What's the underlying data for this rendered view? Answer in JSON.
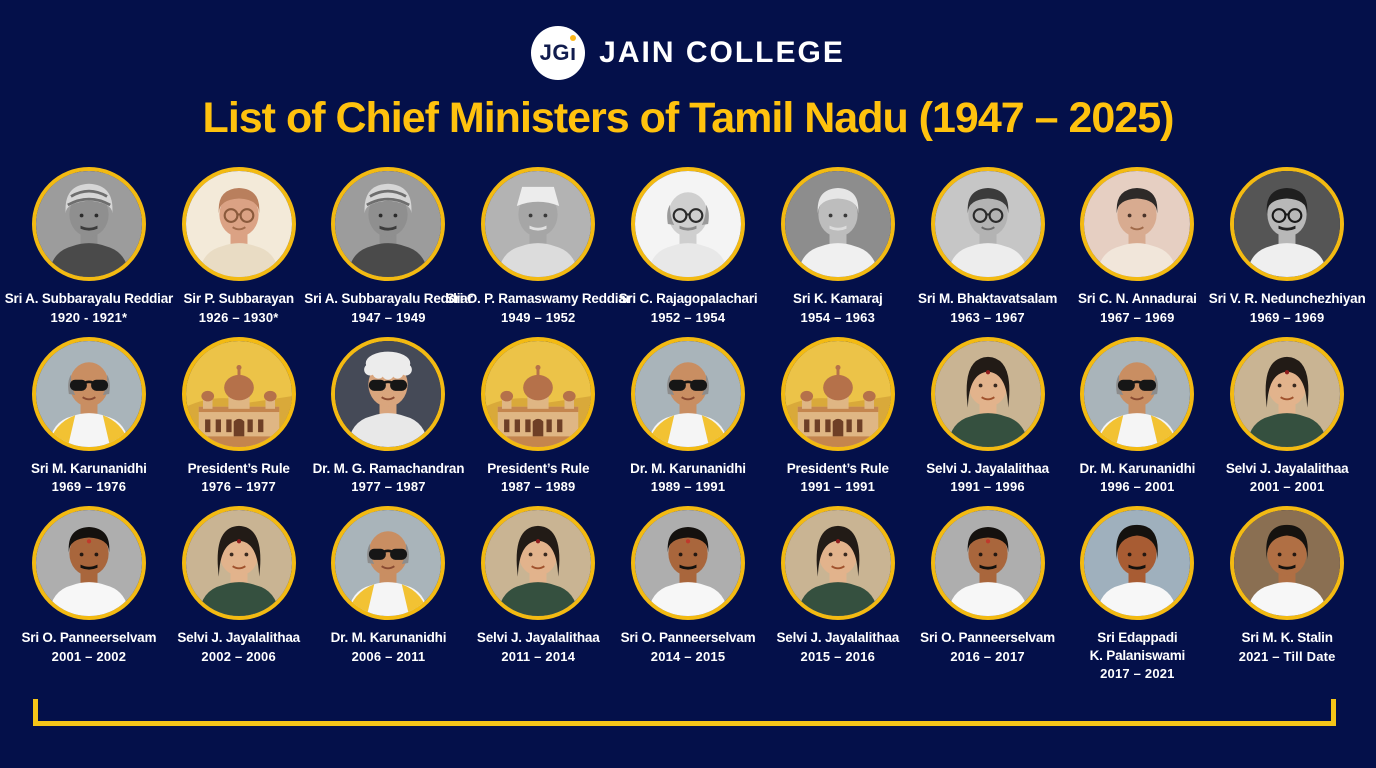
{
  "colors": {
    "page_bg": "#04104a",
    "title_gold": "#ffc20e",
    "ring_gold": "#f3ba12",
    "bracket_gold": "#f5c518",
    "text_white": "#ffffff",
    "logo_navy": "#111c4e",
    "logo_dot": "#ffb81c"
  },
  "header": {
    "logo_part1": "JG",
    "logo_part2": "ı",
    "college_name": "JAIN COLLEGE"
  },
  "title": "List of Chief Ministers of Tamil Nadu (1947 – 2025)",
  "grid": {
    "rows": [
      [
        {
          "name": "Sri A. Subbarayalu Reddiar",
          "years": "1920 - 1921*",
          "avatar": "subbarayalu"
        },
        {
          "name": "Sir P. Subbarayan",
          "years": "1926 – 1930*",
          "avatar": "subbarayan"
        },
        {
          "name": "Sri A. Subbarayalu Reddiar",
          "years": "1947 – 1949",
          "avatar": "subbarayalu"
        },
        {
          "name": "Sri O. P. Ramaswamy Reddiar",
          "years": "1949 – 1952",
          "avatar": "ramaswamy"
        },
        {
          "name": "Sri C. Rajagopalachari",
          "years": "1952 – 1954",
          "avatar": "rajaji"
        },
        {
          "name": "Sri K. Kamaraj",
          "years": "1954 – 1963",
          "avatar": "kamaraj"
        },
        {
          "name": "Sri M. Bhaktavatsalam",
          "years": "1963 – 1967",
          "avatar": "bhaktavatsalam"
        },
        {
          "name": "Sri C. N. Annadurai",
          "years": "1967 – 1969",
          "avatar": "annadurai"
        },
        {
          "name": "Sri V. R. Nedunchezhiyan",
          "years": "1969 – 1969",
          "avatar": "nedunchezhiyan"
        }
      ],
      [
        {
          "name": "Sri M. Karunanidhi",
          "years": "1969 – 1976",
          "avatar": "karunanidhi"
        },
        {
          "name": "President’s Rule",
          "years": "1976 – 1977",
          "avatar": "presidents_rule"
        },
        {
          "name": "Dr. M. G. Ramachandran",
          "years": "1977 – 1987",
          "avatar": "mgr"
        },
        {
          "name": "President’s Rule",
          "years": "1987 – 1989",
          "avatar": "presidents_rule"
        },
        {
          "name": "Dr. M. Karunanidhi",
          "years": "1989 – 1991",
          "avatar": "karunanidhi"
        },
        {
          "name": "President’s Rule",
          "years": "1991 – 1991",
          "avatar": "presidents_rule"
        },
        {
          "name": "Selvi J. Jayalalithaa",
          "years": "1991 – 1996",
          "avatar": "jayalalithaa"
        },
        {
          "name": "Dr. M. Karunanidhi",
          "years": "1996 – 2001",
          "avatar": "karunanidhi"
        },
        {
          "name": "Selvi J. Jayalalithaa",
          "years": "2001 – 2001",
          "avatar": "jayalalithaa"
        }
      ],
      [
        {
          "name": "Sri O. Panneerselvam",
          "years": "2001 – 2002",
          "avatar": "panneerselvam"
        },
        {
          "name": "Selvi J. Jayalalithaa",
          "years": "2002 – 2006",
          "avatar": "jayalalithaa"
        },
        {
          "name": "Dr. M. Karunanidhi",
          "years": "2006 – 2011",
          "avatar": "karunanidhi"
        },
        {
          "name": "Selvi J. Jayalalithaa",
          "years": "2011 – 2014",
          "avatar": "jayalalithaa"
        },
        {
          "name": "Sri O. Panneerselvam",
          "years": "2014 – 2015",
          "avatar": "panneerselvam"
        },
        {
          "name": "Selvi J. Jayalalithaa",
          "years": "2015 – 2016",
          "avatar": "jayalalithaa"
        },
        {
          "name": "Sri O. Panneerselvam",
          "years": "2016 – 2017",
          "avatar": "panneerselvam"
        },
        {
          "name": "Sri Edappadi\nK. Palaniswami",
          "years": "2017 – 2021",
          "avatar": "palaniswami"
        },
        {
          "name": "Sri M. K. Stalin",
          "years": "2021 – Till Date",
          "avatar": "stalin"
        }
      ]
    ]
  },
  "avatars": {
    "subbarayalu": {
      "kind": "person",
      "bg": "#9c9c9c",
      "skin": "#8f8f8f",
      "shirt": "#4a4a4a",
      "hair": "turban",
      "hair_color": "#d6d6d6",
      "stripe": "#6e6e6e",
      "glasses": "none",
      "mustache": "#3c3c3c",
      "eye": "#2b2b2b"
    },
    "subbarayan": {
      "kind": "person",
      "bg": "#f3ead9",
      "skin": "#dba284",
      "shirt": "#e9dcc4",
      "hair": "side",
      "hair_color": "#b97f5d",
      "glasses": "round",
      "frame": "#8a5a3c",
      "eye": "#6b4632",
      "mouth": "#a06a4a"
    },
    "ramaswamy": {
      "kind": "person",
      "bg": "#b3b3b3",
      "skin": "#a6a6a6",
      "shirt": "#dcdcdc",
      "hair": "cap",
      "hair_color": "#ececec",
      "glasses": "none",
      "mustache": "#e0e0e0",
      "eye": "#3a3a3a"
    },
    "rajaji": {
      "kind": "person",
      "bg": "#f4f4f4",
      "skin": "#cfcfcf",
      "shirt": "#e8e8e8",
      "hair": "bald",
      "hair_color": "#9a9a9a",
      "glasses": "round",
      "frame": "#2b2b2b",
      "mustache": "#8a8a8a",
      "eye": "#3a3a3a"
    },
    "kamaraj": {
      "kind": "person",
      "bg": "#8d8d8d",
      "skin": "#bdbdbd",
      "shirt": "#f0f0f0",
      "hair": "side",
      "hair_color": "#e6e6e6",
      "glasses": "none",
      "mustache": "#dcdcdc",
      "eye": "#3a3a3a"
    },
    "bhaktavatsalam": {
      "kind": "person",
      "bg": "#c6c6c6",
      "skin": "#b3b3b3",
      "shirt": "#ededed",
      "hair": "side",
      "hair_color": "#3b3b3b",
      "glasses": "round",
      "frame": "#2b2b2b",
      "eye": "#3a3a3a",
      "mouth": "#6a6a6a"
    },
    "annadurai": {
      "kind": "person",
      "bg": "#e6cfc2",
      "skin": "#d8ab90",
      "shirt": "#f1e6da",
      "hair": "side",
      "hair_color": "#2e2a28",
      "glasses": "none",
      "eye": "#4a342a",
      "mouth": "#a06a4a"
    },
    "nedunchezhiyan": {
      "kind": "person",
      "bg": "#555555",
      "skin": "#b8b8b8",
      "shirt": "#efefef",
      "hair": "side",
      "hair_color": "#1f1f1f",
      "glasses": "round",
      "frame": "#1a1a1a",
      "mustache": "#222222",
      "eye": "#2b2b2b"
    },
    "karunanidhi": {
      "kind": "person",
      "bg": "#a9b4ba",
      "skin": "#c98e62",
      "shirt": "#f5f5f5",
      "hair": "bald",
      "hair_color": "#8c8c8c",
      "glasses": "sun",
      "shawl": "#f2c233",
      "mouth": "#8a4b32"
    },
    "presidents_rule": {
      "kind": "building",
      "sky": "#ecc348",
      "hill": "#d9a93a",
      "wall": "#dfb684",
      "trim": "#c4854e",
      "dome": "#b5714a",
      "dark": "#6e3f26"
    },
    "mgr": {
      "kind": "person",
      "bg": "#454a57",
      "skin": "#d9a57d",
      "shirt": "#e8e8e8",
      "hair": "fur",
      "hair_color": "#ececec",
      "glasses": "sun",
      "mouth": "#8a4b32"
    },
    "jayalalithaa": {
      "kind": "person",
      "bg": "#c9b493",
      "skin": "#e2b38c",
      "shirt": "#35503f",
      "hair": "female",
      "hair_color": "#221b16",
      "glasses": "none",
      "bindi": "#8f1d1d",
      "eye": "#3a2a20",
      "mouth": "#a0522d"
    },
    "panneerselvam": {
      "kind": "person",
      "bg": "#aeaeae",
      "skin": "#a9663c",
      "shirt": "#f7f7f7",
      "hair": "side",
      "hair_color": "#14110e",
      "glasses": "none",
      "mustache": "#14110e",
      "bindi": "#c0392b",
      "eye": "#241812"
    },
    "palaniswami": {
      "kind": "person",
      "bg": "#9fb0bd",
      "skin": "#a85c33",
      "shirt": "#f7f7f7",
      "hair": "full",
      "hair_color": "#14110e",
      "glasses": "none",
      "mustache": "#14110e",
      "eye": "#241812"
    },
    "stalin": {
      "kind": "person",
      "bg": "#8a6f52",
      "skin": "#b06f44",
      "shirt": "#f7f7f7",
      "hair": "full",
      "hair_color": "#15120f",
      "glasses": "none",
      "mustache": "#15120f",
      "eye": "#241812"
    }
  }
}
